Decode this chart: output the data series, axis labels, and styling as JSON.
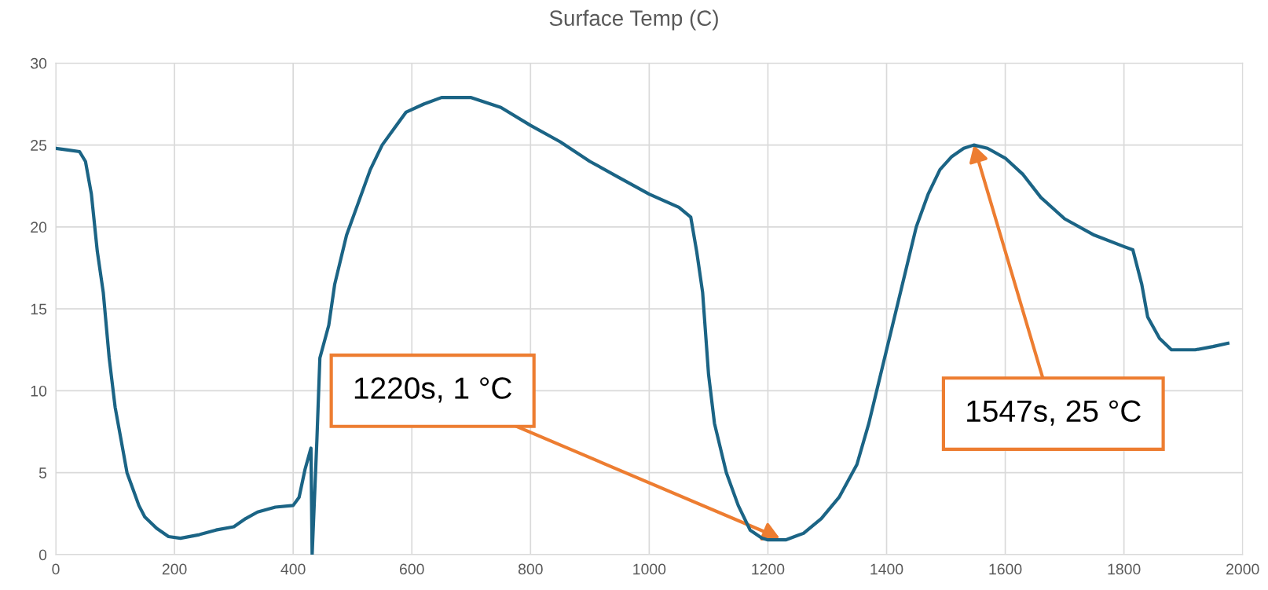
{
  "chart_data": {
    "type": "line",
    "title": "Surface Temp (C)",
    "xlim": [
      0,
      2000
    ],
    "xticks": [
      0,
      200,
      400,
      600,
      800,
      1000,
      1200,
      1400,
      1600,
      1800,
      2000
    ],
    "ylim": [
      0,
      30
    ],
    "yticks": [
      0,
      5,
      10,
      15,
      20,
      25,
      30
    ],
    "grid": true,
    "marker": "none",
    "line_style": "solid",
    "series": [
      {
        "color": "#1b6485",
        "x": [
          0,
          20,
          40,
          50,
          60,
          70,
          80,
          90,
          100,
          110,
          120,
          130,
          140,
          150,
          170,
          190,
          210,
          240,
          270,
          300,
          320,
          340,
          370,
          400,
          410,
          420,
          430,
          432,
          440,
          445,
          460,
          470,
          490,
          510,
          530,
          550,
          570,
          590,
          620,
          650,
          700,
          750,
          800,
          850,
          900,
          950,
          1000,
          1050,
          1070,
          1080,
          1090,
          1100,
          1110,
          1130,
          1150,
          1170,
          1190,
          1200,
          1230,
          1260,
          1290,
          1320,
          1350,
          1370,
          1390,
          1410,
          1430,
          1450,
          1470,
          1490,
          1510,
          1530,
          1547,
          1570,
          1600,
          1630,
          1660,
          1700,
          1750,
          1800,
          1815,
          1830,
          1840,
          1860,
          1880,
          1920,
          1950,
          1975
        ],
        "values": [
          24.8,
          24.7,
          24.6,
          24.0,
          22.0,
          18.5,
          16,
          12,
          9,
          7,
          5,
          4,
          3,
          2.3,
          1.6,
          1.1,
          1.0,
          1.2,
          1.5,
          1.7,
          2.2,
          2.6,
          2.9,
          3.0,
          3.5,
          5.2,
          6.5,
          0,
          7,
          12,
          14,
          16.5,
          19.5,
          21.5,
          23.5,
          25,
          26,
          27,
          27.5,
          27.9,
          27.9,
          27.3,
          26.2,
          25.2,
          24.0,
          23.0,
          22.0,
          21.2,
          20.6,
          18.5,
          16,
          11,
          8,
          5,
          3,
          1.5,
          1.0,
          0.9,
          0.9,
          1.3,
          2.2,
          3.5,
          5.5,
          8,
          11,
          14,
          17,
          20,
          22,
          23.5,
          24.3,
          24.8,
          25,
          24.8,
          24.2,
          23.2,
          21.8,
          20.5,
          19.5,
          18.8,
          18.6,
          16.5,
          14.5,
          13.2,
          12.5,
          12.5,
          12.7,
          12.9
        ]
      }
    ],
    "annotations": [
      {
        "text": "1220s, 1 °C",
        "x": 1220,
        "y": 1
      },
      {
        "text": "1547s, 25 °C",
        "x": 1547,
        "y": 25
      }
    ]
  }
}
